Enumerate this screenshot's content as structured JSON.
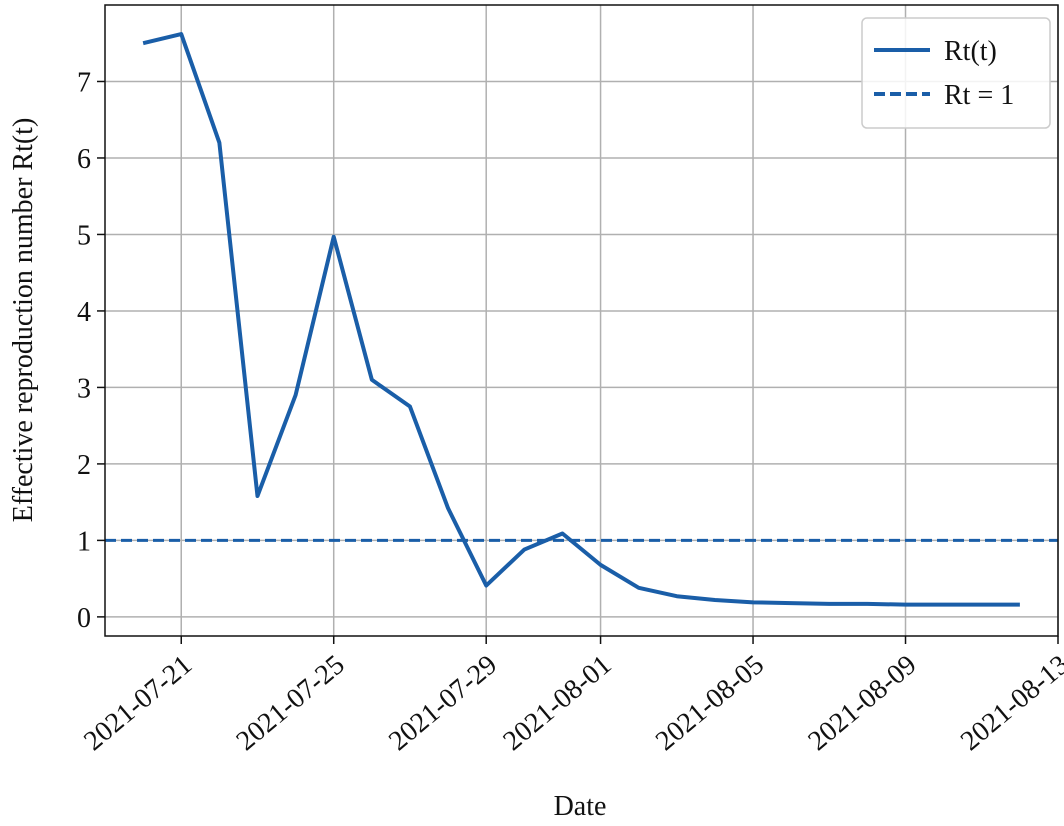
{
  "chart_data": {
    "type": "line",
    "x_label": "Date",
    "y_label": "Effective reproduction number Rt(t)",
    "x": [
      "2021-07-20",
      "2021-07-21",
      "2021-07-22",
      "2021-07-23",
      "2021-07-24",
      "2021-07-25",
      "2021-07-26",
      "2021-07-27",
      "2021-07-28",
      "2021-07-29",
      "2021-07-30",
      "2021-07-31",
      "2021-08-01",
      "2021-08-02",
      "2021-08-03",
      "2021-08-04",
      "2021-08-05",
      "2021-08-06",
      "2021-08-07",
      "2021-08-08",
      "2021-08-09",
      "2021-08-10",
      "2021-08-11",
      "2021-08-12"
    ],
    "series": [
      {
        "name": "Rt(t)",
        "color": "#1a5ea8",
        "values": [
          7.5,
          7.62,
          6.2,
          1.58,
          2.9,
          4.97,
          3.1,
          2.75,
          1.42,
          0.41,
          0.88,
          1.09,
          0.68,
          0.38,
          0.27,
          0.22,
          0.19,
          0.18,
          0.17,
          0.17,
          0.16,
          0.16,
          0.16,
          0.16
        ]
      }
    ],
    "hlines": [
      {
        "name": "Rt = 1",
        "y": 1,
        "color": "#1a5ea8",
        "linestyle": "dashed"
      }
    ],
    "xlim": [
      "2021-07-19",
      "2021-08-13"
    ],
    "xticks": [
      "2021-07-21",
      "2021-07-25",
      "2021-07-29",
      "2021-08-01",
      "2021-08-05",
      "2021-08-09",
      "2021-08-13"
    ],
    "ylim": [
      -0.25,
      8.0
    ],
    "yticks": [
      0,
      1,
      2,
      3,
      4,
      5,
      6,
      7
    ],
    "grid": true,
    "legend": "upper right"
  }
}
